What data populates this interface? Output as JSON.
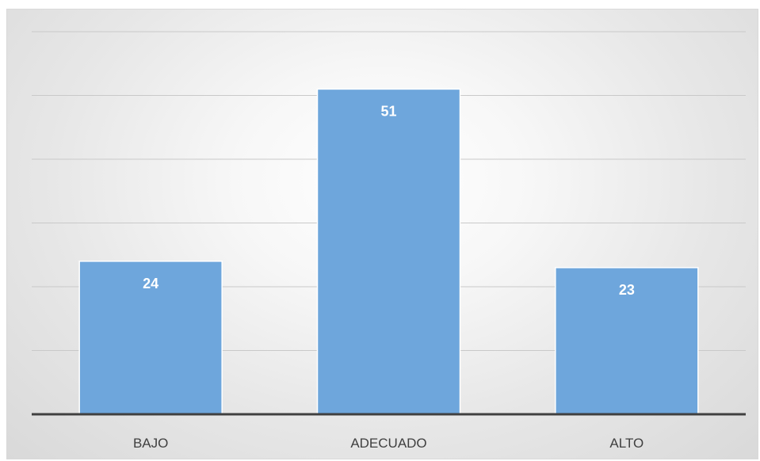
{
  "chart_data": {
    "type": "bar",
    "categories": [
      "BAJO",
      "ADECUADO",
      "ALTO"
    ],
    "values": [
      24,
      51,
      23
    ],
    "data_labels": [
      "24",
      "51",
      "23"
    ],
    "ylim": [
      0,
      60
    ],
    "grid": true,
    "legend": "none",
    "colors": {
      "bar": "#6ea6dc",
      "gridline": "#c9c9c9",
      "axis": "#404040"
    }
  }
}
